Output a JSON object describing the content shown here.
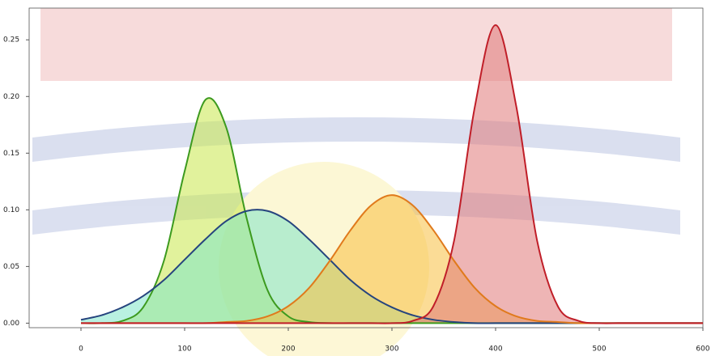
{
  "chart_data": {
    "type": "area",
    "x": [
      0,
      20,
      40,
      60,
      80,
      100,
      120,
      140,
      160,
      180,
      200,
      220,
      240,
      260,
      280,
      300,
      320,
      340,
      360,
      380,
      400,
      420,
      440,
      460,
      480,
      500,
      520,
      540,
      560,
      580,
      600
    ],
    "series": [
      {
        "color": "#3c9a1e",
        "fill": "#c8e84a",
        "values": [
          0,
          0,
          0.002,
          0.014,
          0.055,
          0.134,
          0.197,
          0.173,
          0.092,
          0.029,
          0.006,
          0.001,
          0,
          0,
          0,
          0,
          0,
          0,
          0,
          0,
          0,
          0,
          0,
          0,
          0,
          0,
          0,
          0,
          0,
          0,
          0
        ]
      },
      {
        "color": "#26447e",
        "fill": "#7fe6c8",
        "values": [
          0.003,
          0.007,
          0.014,
          0.024,
          0.038,
          0.056,
          0.074,
          0.09,
          0.099,
          0.099,
          0.09,
          0.074,
          0.056,
          0.038,
          0.024,
          0.014,
          0.007,
          0.003,
          0.001,
          0,
          0,
          0,
          0,
          0,
          0,
          0,
          0,
          0,
          0,
          0,
          0
        ]
      },
      {
        "color": "#e07a1c",
        "fill": "#f8c040",
        "values": [
          0,
          0,
          0,
          0,
          0,
          0,
          0,
          0.001,
          0.002,
          0.006,
          0.015,
          0.031,
          0.055,
          0.082,
          0.104,
          0.113,
          0.104,
          0.082,
          0.055,
          0.031,
          0.015,
          0.006,
          0.002,
          0.001,
          0,
          0,
          0,
          0,
          0,
          0,
          0
        ]
      },
      {
        "color": "#c01e28",
        "fill": "#e07878",
        "values": [
          0,
          0,
          0,
          0,
          0,
          0,
          0,
          0,
          0,
          0,
          0,
          0,
          0,
          0,
          0,
          0,
          0.002,
          0.015,
          0.073,
          0.191,
          0.263,
          0.191,
          0.073,
          0.015,
          0.002,
          0,
          0,
          0,
          0,
          0,
          0
        ]
      }
    ],
    "xlim": [
      -50,
      600
    ],
    "xticks": [
      0,
      100,
      200,
      300,
      400,
      500,
      600
    ],
    "ylim": [
      -0.004,
      0.278
    ],
    "yticks": [
      {
        "value": 0,
        "label": "0.00"
      },
      {
        "value": 0.05,
        "label": "0.05"
      },
      {
        "value": 0.1,
        "label": "0.10"
      },
      {
        "value": 0.15,
        "label": "0.15"
      },
      {
        "value": 0.2,
        "label": "0.20"
      },
      {
        "value": 0.25,
        "label": "0.25"
      }
    ]
  }
}
